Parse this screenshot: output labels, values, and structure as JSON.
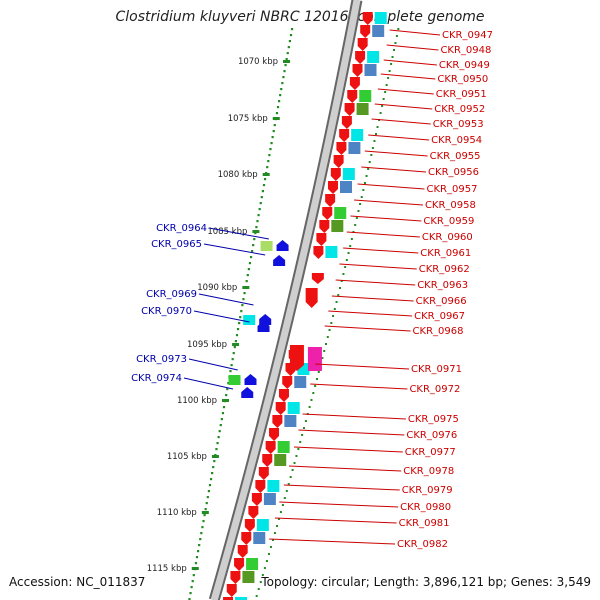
{
  "title": "Clostridium kluyveri NBRC 12016, complete genome",
  "footer": {
    "accession": "Accession: NC_011837",
    "stats": "Topology: circular; Length: 3,896,121 bp; Genes: 3,549"
  },
  "scale": {
    "unit": "kbp",
    "ticks": [
      "1070 kbp",
      "1075 kbp",
      "1080 kbp",
      "1085 kbp",
      "1090 kbp",
      "1095 kbp",
      "1100 kbp",
      "1105 kbp",
      "1110 kbp",
      "1115 kbp"
    ]
  },
  "genes_plus": [
    "CKR_0964",
    "CKR_0965",
    "CKR_0969",
    "CKR_0970",
    "CKR_0973",
    "CKR_0974"
  ],
  "genes_minus": [
    "CKR_0947",
    "CKR_0948",
    "CKR_0949",
    "CKR_0950",
    "CKR_0951",
    "CKR_0952",
    "CKR_0953",
    "CKR_0954",
    "CKR_0955",
    "CKR_0956",
    "CKR_0957",
    "CKR_0958",
    "CKR_0959",
    "CKR_0960",
    "CKR_0961",
    "CKR_0962",
    "CKR_0963",
    "CKR_0966",
    "CKR_0967",
    "CKR_0968",
    "CKR_0971",
    "CKR_0972",
    "CKR_0975",
    "CKR_0976",
    "CKR_0977",
    "CKR_0978",
    "CKR_0979",
    "CKR_0980",
    "CKR_0981",
    "CKR_0982"
  ],
  "colors": {
    "gene_minus": "#ee1111",
    "gene_plus": "#1111dd",
    "label_minus": "#cc0000",
    "label_plus": "#0000aa",
    "tick": "#228b22",
    "backbone": "#888888"
  }
}
